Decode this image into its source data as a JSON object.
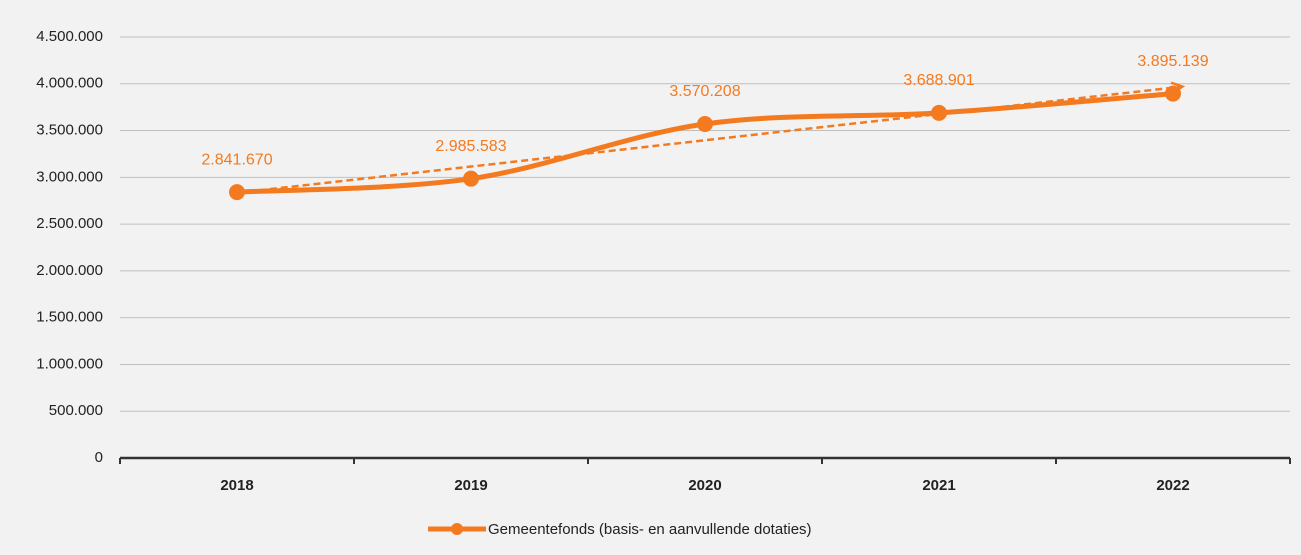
{
  "chart_data": {
    "type": "line",
    "categories": [
      "2018",
      "2019",
      "2020",
      "2021",
      "2022"
    ],
    "series": [
      {
        "name": "Gemeentefonds (basis- en aanvullende dotaties)",
        "color": "#f47a20",
        "values": [
          2841670,
          2985583,
          3570208,
          3688901,
          3895139
        ],
        "value_labels": [
          "2.841.670",
          "2.985.583",
          "3.570.208",
          "3.688.901",
          "3.895.139"
        ]
      }
    ],
    "ylim": [
      0,
      4500000
    ],
    "yticks": [
      0,
      {
        "value": 500000,
        "label": "500.000"
      },
      {
        "value": 1000000,
        "label": "1.000.000"
      },
      {
        "value": 1500000,
        "label": "1.500.000"
      },
      {
        "value": 2000000,
        "label": "2.000.000"
      },
      {
        "value": 2500000,
        "label": "2.500.000"
      },
      {
        "value": 3000000,
        "label": "3.000.000"
      },
      {
        "value": 3500000,
        "label": "3.500.000"
      },
      {
        "value": 4000000,
        "label": "4.000.000"
      },
      {
        "value": 4500000,
        "label": "4.500.000"
      }
    ],
    "grid": true,
    "trendline": true,
    "smooth": true,
    "legend": "bottom"
  }
}
